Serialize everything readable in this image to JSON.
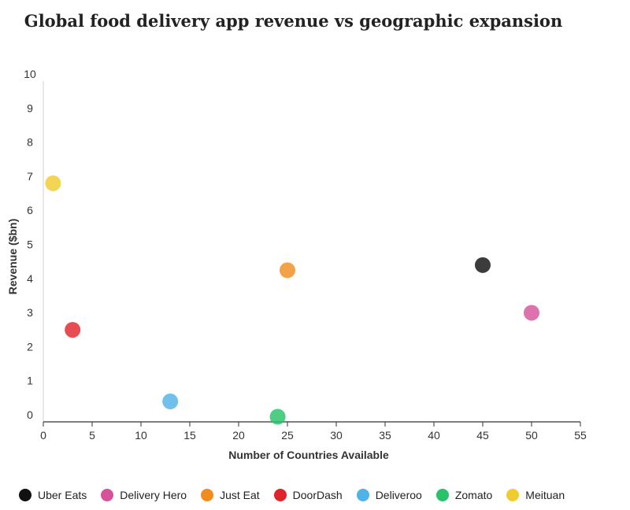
{
  "chart_data": {
    "type": "scatter",
    "title": "Global food delivery app revenue vs geographic expansion",
    "xlabel": "Number of Countries Available",
    "ylabel": "Revenue ($bn)",
    "xlim": [
      0,
      55
    ],
    "ylim": [
      0,
      10
    ],
    "xticks": [
      0,
      5,
      10,
      15,
      20,
      25,
      30,
      35,
      40,
      45,
      50,
      55
    ],
    "yticks": [
      0,
      1,
      2,
      3,
      4,
      5,
      6,
      7,
      8,
      9,
      10
    ],
    "grid": false,
    "legend_position": "bottom",
    "series": [
      {
        "name": "Uber Eats",
        "color": "#111111",
        "x": [
          45
        ],
        "y": [
          4.6
        ]
      },
      {
        "name": "Delivery Hero",
        "color": "#d6539a",
        "x": [
          50
        ],
        "y": [
          3.2
        ]
      },
      {
        "name": "Just Eat",
        "color": "#f28c1e",
        "x": [
          25
        ],
        "y": [
          4.45
        ]
      },
      {
        "name": "DoorDash",
        "color": "#e0242b",
        "x": [
          3
        ],
        "y": [
          2.7
        ]
      },
      {
        "name": "Deliveroo",
        "color": "#4fb3e8",
        "x": [
          13
        ],
        "y": [
          0.6
        ]
      },
      {
        "name": "Zomato",
        "color": "#27c26a",
        "x": [
          24
        ],
        "y": [
          0.15
        ]
      },
      {
        "name": "Meituan",
        "color": "#f0cc2e",
        "x": [
          1
        ],
        "y": [
          7.0
        ]
      }
    ]
  }
}
